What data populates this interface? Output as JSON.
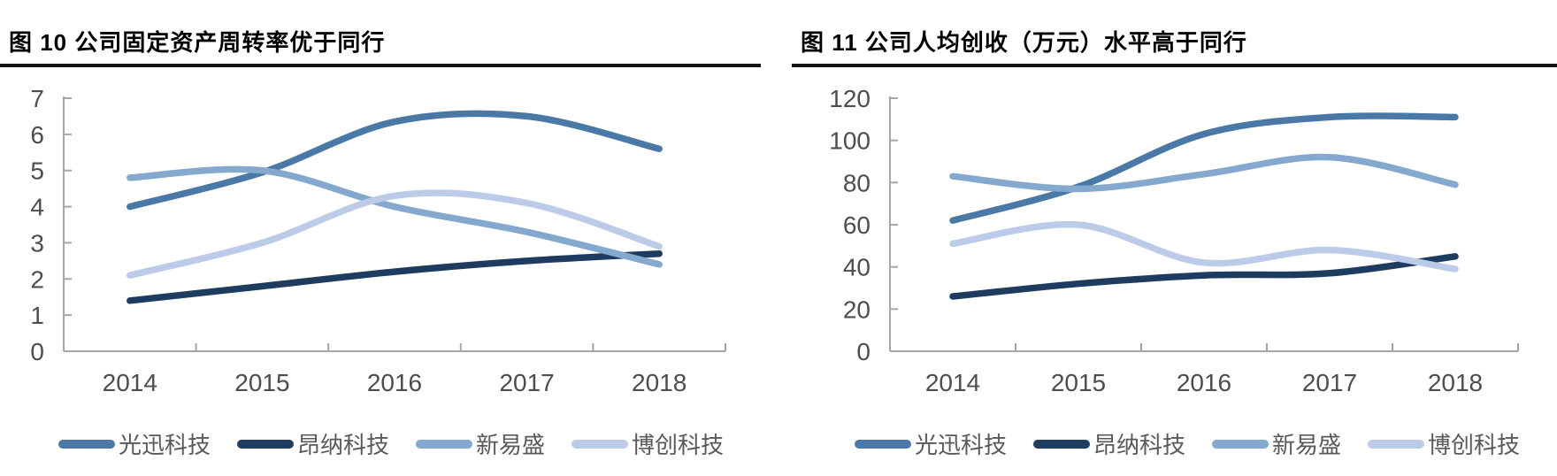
{
  "page": {
    "background": "#ffffff"
  },
  "style": {
    "axis_color": "#a6a6a6",
    "tick_label_color": "#4d4d4d",
    "legend_label_color": "#595959",
    "title_color": "#000000",
    "rule_color": "#141414"
  },
  "charts": [
    {
      "title": "图 10 公司固定资产周转率优于同行",
      "chart_data": {
        "type": "line",
        "categories": [
          "2014",
          "2015",
          "2016",
          "2017",
          "2018"
        ],
        "series": [
          {
            "name": "光迅科技",
            "color": "#4a79a8",
            "values": [
              4.0,
              4.95,
              6.35,
              6.5,
              5.6
            ]
          },
          {
            "name": "昂纳科技",
            "color": "#1e3c60",
            "values": [
              1.4,
              1.8,
              2.2,
              2.5,
              2.7
            ]
          },
          {
            "name": "新易盛",
            "color": "#84a8ce",
            "values": [
              4.8,
              5.0,
              4.0,
              3.3,
              2.4
            ]
          },
          {
            "name": "博创科技",
            "color": "#bccbe8",
            "values": [
              2.1,
              3.0,
              4.3,
              4.1,
              2.9
            ]
          }
        ],
        "xlabel": "",
        "ylabel": "",
        "ylim": [
          0,
          7
        ],
        "yticks": [
          0,
          1,
          2,
          3,
          4,
          5,
          6,
          7
        ],
        "grid": false,
        "legend_position": "bottom"
      }
    },
    {
      "title": "图 11 公司人均创收（万元）水平高于同行",
      "chart_data": {
        "type": "line",
        "categories": [
          "2014",
          "2015",
          "2016",
          "2017",
          "2018"
        ],
        "series": [
          {
            "name": "光迅科技",
            "color": "#4a79a8",
            "values": [
              62,
              78,
              103,
              111,
              111
            ]
          },
          {
            "name": "昂纳科技",
            "color": "#1e3c60",
            "values": [
              26,
              32,
              36,
              37,
              45
            ]
          },
          {
            "name": "新易盛",
            "color": "#84a8ce",
            "values": [
              83,
              77,
              84,
              92,
              79
            ]
          },
          {
            "name": "博创科技",
            "color": "#bccbe8",
            "values": [
              51,
              60,
              42,
              48,
              39
            ]
          }
        ],
        "xlabel": "",
        "ylabel": "",
        "ylim": [
          0,
          120
        ],
        "yticks": [
          0,
          20,
          40,
          60,
          80,
          100,
          120
        ],
        "grid": false,
        "legend_position": "bottom"
      }
    }
  ]
}
